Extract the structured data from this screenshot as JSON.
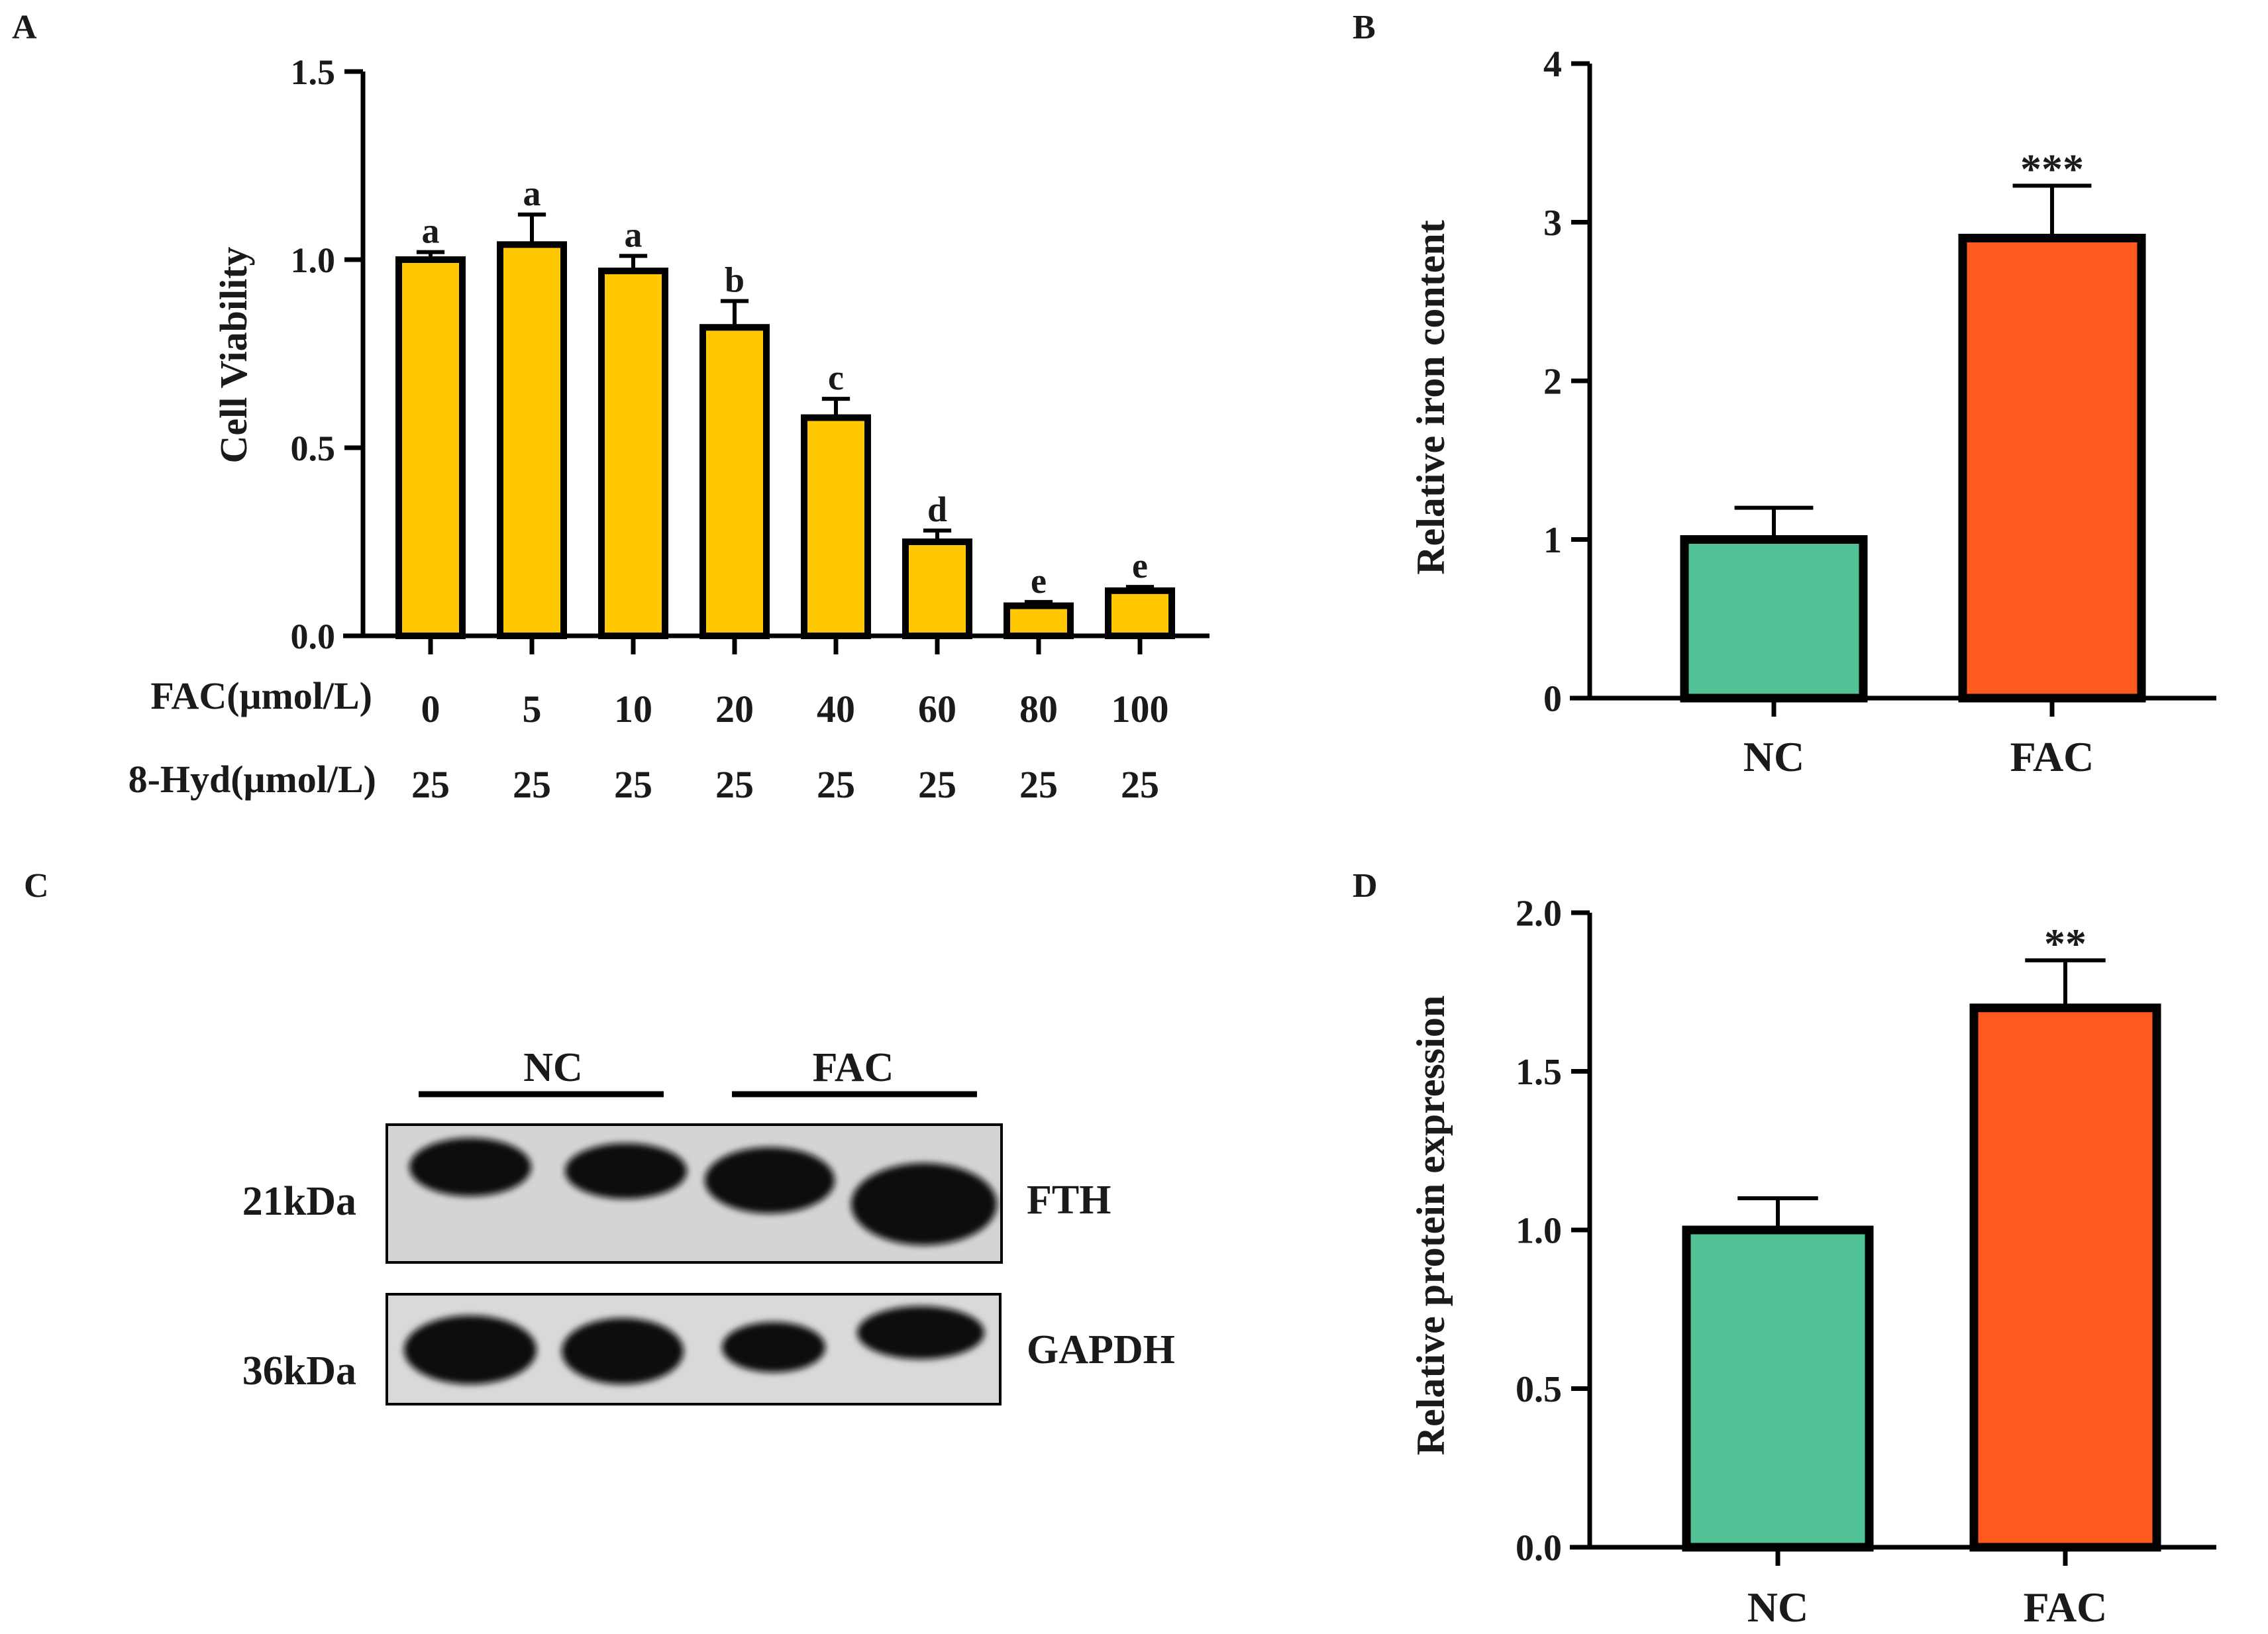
{
  "panel_labels": {
    "a": "A",
    "b": "B",
    "c": "C",
    "d": "D"
  },
  "colors": {
    "yellow": "#FFC800",
    "green": "#52C396",
    "orange": "#FF5A1E",
    "axis": "#000000"
  },
  "chart_data": [
    {
      "id": "A",
      "type": "bar",
      "title": "",
      "ylabel": "Cell Viability",
      "ylim": [
        0,
        1.5
      ],
      "yticks": [
        "0.0",
        "0.5",
        "1.0",
        "1.5"
      ],
      "categories": [
        "0",
        "5",
        "10",
        "20",
        "40",
        "60",
        "80",
        "100"
      ],
      "values": [
        1.0,
        1.04,
        0.97,
        0.82,
        0.58,
        0.25,
        0.08,
        0.12
      ],
      "errors": [
        0.02,
        0.08,
        0.04,
        0.07,
        0.05,
        0.03,
        0.01,
        0.01
      ],
      "significance": [
        "a",
        "a",
        "a",
        "b",
        "c",
        "d",
        "e",
        "e"
      ],
      "row_labels": {
        "fac": "FAC(μmol/L)",
        "hyd": "8-Hyd(μmol/L)"
      },
      "hyd_values": [
        "25",
        "25",
        "25",
        "25",
        "25",
        "25",
        "25",
        "25"
      ],
      "color": "#FFC800"
    },
    {
      "id": "B",
      "type": "bar",
      "title": "",
      "ylabel": "Relative iron content",
      "ylim": [
        0,
        4
      ],
      "yticks": [
        "0",
        "1",
        "2",
        "3",
        "4"
      ],
      "categories": [
        "NC",
        "FAC"
      ],
      "values": [
        1.0,
        2.9
      ],
      "errors": [
        0.2,
        0.33
      ],
      "significance": [
        "",
        "***"
      ],
      "colors": [
        "#52C396",
        "#FF5A1E"
      ]
    },
    {
      "id": "D",
      "type": "bar",
      "title": "",
      "ylabel": "Relative protein expression",
      "ylim": [
        0,
        2.0
      ],
      "yticks": [
        "0.0",
        "0.5",
        "1.0",
        "1.5",
        "2.0"
      ],
      "categories": [
        "NC",
        "FAC"
      ],
      "values": [
        1.0,
        1.7
      ],
      "errors": [
        0.1,
        0.15
      ],
      "significance": [
        "",
        "**"
      ],
      "colors": [
        "#52C396",
        "#FF5A1E"
      ]
    }
  ],
  "blot": {
    "groups": [
      "NC",
      "FAC"
    ],
    "rows": [
      {
        "marker": "21kDa",
        "protein": "FTH"
      },
      {
        "marker": "36kDa",
        "protein": "GAPDH"
      }
    ]
  }
}
